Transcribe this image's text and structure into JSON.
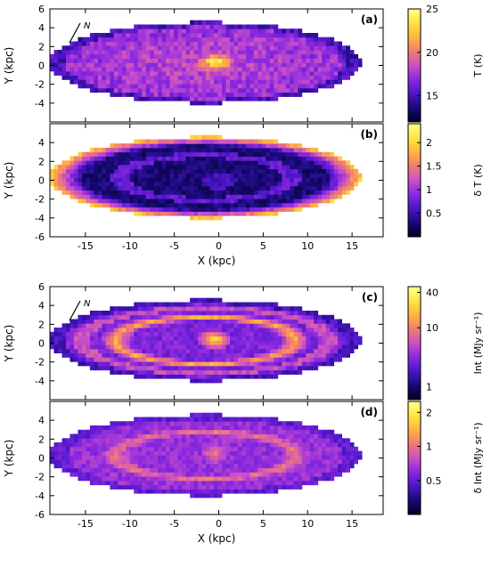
{
  "chart_data": [
    {
      "type": "heatmap",
      "panel": "(a)",
      "ylabel": "Y (kpc)",
      "xlim": [
        -19,
        18.5
      ],
      "ylim": [
        -6,
        6
      ],
      "yticks": [
        "6",
        "4",
        "2",
        "0",
        "-2",
        "-4"
      ],
      "colorbar": {
        "label": "T (K)",
        "scale": "linear",
        "min": 12,
        "max": 25,
        "ticks": [
          "25",
          "20",
          "15"
        ]
      },
      "orientation_marker": "N",
      "palette": [
        "#000028",
        "#1a0a7a",
        "#4b16c8",
        "#8a28e0",
        "#c850c8",
        "#f07878",
        "#ffb040",
        "#ffe040",
        "#ffff80"
      ],
      "disk": {
        "level": 0.45,
        "core_level": 0.85
      }
    },
    {
      "type": "heatmap",
      "panel": "(b)",
      "ylabel": "Y (kpc)",
      "xlim": [
        -19,
        18.5
      ],
      "ylim": [
        -6,
        6
      ],
      "yticks": [
        "4",
        "2",
        "0",
        "-2",
        "-4",
        "-6"
      ],
      "colorbar": {
        "label": "δ T (K)",
        "scale": "linear",
        "min": 0,
        "max": 2.4,
        "ticks": [
          "2",
          "1.5",
          "1",
          "0.5"
        ]
      },
      "palette": [
        "#000028",
        "#1a0a7a",
        "#4b16c8",
        "#8a28e0",
        "#c850c8",
        "#f07878",
        "#ffb040",
        "#ffe040",
        "#ffff80"
      ],
      "disk": {
        "level": 0.2,
        "edge_level": 0.7
      }
    },
    {
      "type": "heatmap",
      "panel": "(c)",
      "ylabel": "Y (kpc)",
      "xlim": [
        -19,
        18.5
      ],
      "ylim": [
        -6,
        6
      ],
      "yticks": [
        "6",
        "4",
        "2",
        "0",
        "-2",
        "-4"
      ],
      "colorbar": {
        "label": "Int (MJy sr⁻¹)",
        "scale": "log",
        "min": 0.6,
        "max": 50,
        "ticks": [
          "40",
          "10",
          "1"
        ]
      },
      "orientation_marker": "N",
      "palette": [
        "#000028",
        "#1a0a7a",
        "#4b16c8",
        "#8a28e0",
        "#c850c8",
        "#f07878",
        "#ffb040",
        "#ffe040",
        "#ffff80"
      ],
      "disk": {
        "level": 0.4,
        "ring_level": 0.78,
        "core_level": 0.95
      }
    },
    {
      "type": "heatmap",
      "panel": "(d)",
      "ylabel": "Y (kpc)",
      "xlabel": "X (kpc)",
      "xlim": [
        -19,
        18.5
      ],
      "ylim": [
        -6,
        6
      ],
      "xticks": [
        "-15",
        "-10",
        "-5",
        "0",
        "5",
        "10",
        "15"
      ],
      "yticks": [
        "4",
        "2",
        "0",
        "-2",
        "-4",
        "-6"
      ],
      "colorbar": {
        "label": "δ Int (MJy sr⁻¹)",
        "scale": "log",
        "min": 0.25,
        "max": 2.5,
        "ticks": [
          "2",
          "1",
          "0.5"
        ]
      },
      "palette": [
        "#000028",
        "#1a0a7a",
        "#4b16c8",
        "#8a28e0",
        "#c850c8",
        "#f07878",
        "#ffb040",
        "#ffe040",
        "#ffff80"
      ],
      "disk": {
        "level": 0.45,
        "ring_level": 0.72,
        "core_level": 0.75
      }
    }
  ],
  "x_axis_top_group": {
    "xlabel": "X (kpc)",
    "xticks": [
      "-15",
      "-10",
      "-5",
      "0",
      "5",
      "10",
      "15"
    ]
  }
}
